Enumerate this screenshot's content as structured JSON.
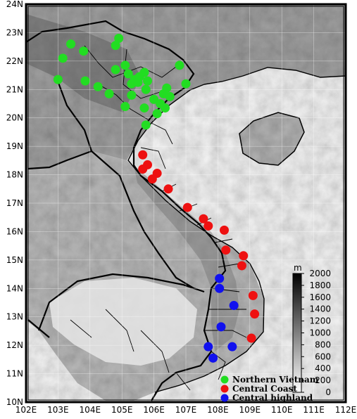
{
  "map": {
    "lon_range": [
      102,
      112
    ],
    "lat_range": [
      10,
      24
    ],
    "lon_ticks": [
      "102E",
      "103E",
      "104E",
      "105E",
      "106E",
      "107E",
      "108E",
      "109E",
      "110E",
      "111E",
      "112E"
    ],
    "lat_ticks": [
      "10N",
      "11N",
      "12N",
      "13N",
      "14N",
      "15N",
      "16N",
      "17N",
      "18N",
      "19N",
      "20N",
      "21N",
      "22N",
      "23N",
      "24N"
    ]
  },
  "colorbar": {
    "unit": "m",
    "range": [
      0,
      2000
    ],
    "ticks": [
      "0",
      "200",
      "400",
      "600",
      "800",
      "1000",
      "1200",
      "1400",
      "1600",
      "1800",
      "2000"
    ]
  },
  "legend": {
    "items": [
      {
        "label": "Northern Vietnam",
        "color": "#22dd22"
      },
      {
        "label": "Central Coast",
        "color": "#ee1111"
      },
      {
        "label": "Central highland",
        "color": "#1111ee"
      }
    ]
  },
  "stations": {
    "northern": [
      [
        103.4,
        22.6
      ],
      [
        103.8,
        22.35
      ],
      [
        104.9,
        22.8
      ],
      [
        104.8,
        22.55
      ],
      [
        103.15,
        22.1
      ],
      [
        105.1,
        21.85
      ],
      [
        104.8,
        21.7
      ],
      [
        105.2,
        21.55
      ],
      [
        105.4,
        21.35
      ],
      [
        105.7,
        21.6
      ],
      [
        105.55,
        21.45
      ],
      [
        106.8,
        21.85
      ],
      [
        105.3,
        21.2
      ],
      [
        105.5,
        21.25
      ],
      [
        105.8,
        21.3
      ],
      [
        103.0,
        21.35
      ],
      [
        103.85,
        21.3
      ],
      [
        104.25,
        21.1
      ],
      [
        104.6,
        20.85
      ],
      [
        105.3,
        20.8
      ],
      [
        105.75,
        21.0
      ],
      [
        106.4,
        21.05
      ],
      [
        106.3,
        20.85
      ],
      [
        106.5,
        20.75
      ],
      [
        106.0,
        20.65
      ],
      [
        106.2,
        20.5
      ],
      [
        105.1,
        20.4
      ],
      [
        105.7,
        20.35
      ],
      [
        106.35,
        20.35
      ],
      [
        106.1,
        20.15
      ],
      [
        105.75,
        19.75
      ],
      [
        107.0,
        21.2
      ]
    ],
    "central_coast": [
      [
        105.65,
        18.7
      ],
      [
        105.8,
        18.35
      ],
      [
        105.65,
        18.2
      ],
      [
        106.1,
        18.05
      ],
      [
        105.95,
        17.85
      ],
      [
        106.45,
        17.5
      ],
      [
        107.05,
        16.85
      ],
      [
        107.55,
        16.45
      ],
      [
        107.7,
        16.2
      ],
      [
        108.2,
        16.05
      ],
      [
        108.25,
        15.35
      ],
      [
        108.8,
        15.15
      ],
      [
        108.75,
        14.8
      ],
      [
        109.1,
        13.75
      ],
      [
        109.15,
        13.1
      ],
      [
        109.05,
        12.25
      ]
    ],
    "central_highland": [
      [
        108.05,
        14.35
      ],
      [
        108.05,
        14.0
      ],
      [
        108.5,
        13.4
      ],
      [
        108.1,
        12.65
      ],
      [
        107.7,
        11.95
      ],
      [
        108.45,
        11.95
      ],
      [
        107.85,
        11.55
      ]
    ]
  }
}
